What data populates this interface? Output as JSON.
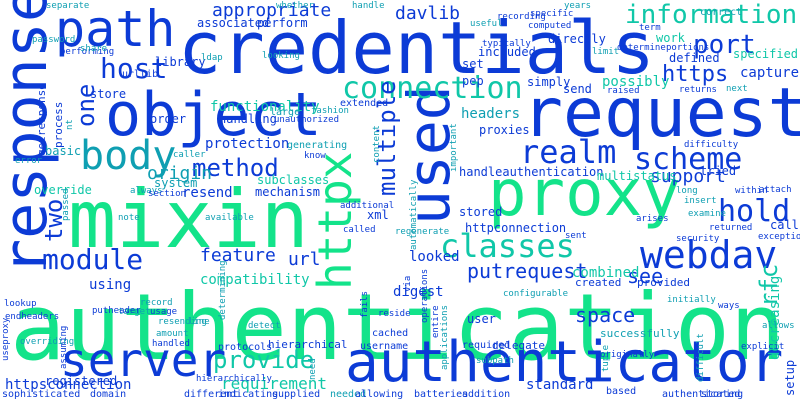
{
  "palette": {
    "green": "#13e38a",
    "blue": "#0c3bd6",
    "teal": "#0f9fb2",
    "aqua": "#10c7a8"
  },
  "words": [
    {
      "t": "authentication",
      "c": "green"
    },
    {
      "t": "credentials",
      "c": "blue"
    },
    {
      "t": "response",
      "c": "blue"
    },
    {
      "t": "mixin",
      "c": "green"
    },
    {
      "t": "request",
      "c": "blue"
    },
    {
      "t": "object",
      "c": "blue"
    },
    {
      "t": "authenticator",
      "c": "blue"
    },
    {
      "t": "used",
      "c": "blue"
    },
    {
      "t": "proxy",
      "c": "green"
    },
    {
      "t": "server",
      "c": "blue"
    },
    {
      "t": "path",
      "c": "blue"
    },
    {
      "t": "webdav",
      "c": "blue"
    },
    {
      "t": "classes",
      "c": "aqua"
    },
    {
      "t": "httpx",
      "c": "green"
    },
    {
      "t": "body",
      "c": "teal"
    },
    {
      "t": "connection",
      "c": "aqua"
    },
    {
      "t": "information",
      "c": "aqua"
    },
    {
      "t": "realm",
      "c": "blue"
    },
    {
      "t": "scheme",
      "c": "blue"
    },
    {
      "t": "module",
      "c": "blue"
    },
    {
      "t": "host",
      "c": "blue"
    },
    {
      "t": "port",
      "c": "blue"
    },
    {
      "t": "method",
      "c": "blue"
    },
    {
      "t": "multiple",
      "c": "blue"
    },
    {
      "t": "hold",
      "c": "blue"
    },
    {
      "t": "provide",
      "c": "aqua"
    },
    {
      "t": "appropriate",
      "c": "blue"
    },
    {
      "t": "davlib",
      "c": "blue"
    },
    {
      "t": "one",
      "c": "blue"
    },
    {
      "t": "putrequest",
      "c": "blue"
    },
    {
      "t": "https",
      "c": "blue"
    },
    {
      "t": "two",
      "c": "blue"
    },
    {
      "t": "origin",
      "c": "teal"
    },
    {
      "t": "support",
      "c": "blue"
    },
    {
      "t": "feature",
      "c": "blue"
    },
    {
      "t": "url",
      "c": "blue"
    },
    {
      "t": "compatibility",
      "c": "aqua"
    },
    {
      "t": "see",
      "c": "blue"
    },
    {
      "t": "space",
      "c": "blue"
    },
    {
      "t": "requirement",
      "c": "aqua"
    },
    {
      "t": "rfc",
      "c": "aqua"
    },
    {
      "t": "httpsconnection",
      "c": "blue"
    },
    {
      "t": "using",
      "c": "blue"
    },
    {
      "t": "combined",
      "c": "aqua"
    },
    {
      "t": "looked",
      "c": "blue"
    },
    {
      "t": "functionality",
      "c": "aqua"
    },
    {
      "t": "protection",
      "c": "blue"
    },
    {
      "t": "resend",
      "c": "blue"
    },
    {
      "t": "possibly",
      "c": "aqua"
    },
    {
      "t": "capture",
      "c": "blue"
    },
    {
      "t": "work",
      "c": "aqua"
    },
    {
      "t": "correct",
      "c": "teal"
    },
    {
      "t": "specified",
      "c": "aqua"
    },
    {
      "t": "defined",
      "c": "blue"
    },
    {
      "t": "headers",
      "c": "teal"
    },
    {
      "t": "proxies",
      "c": "blue"
    },
    {
      "t": "system",
      "c": "teal"
    },
    {
      "t": "subclasses",
      "c": "aqua"
    },
    {
      "t": "mechanism",
      "c": "blue"
    },
    {
      "t": "handleauthentication",
      "c": "blue"
    },
    {
      "t": "stored",
      "c": "blue"
    },
    {
      "t": "digest",
      "c": "blue"
    },
    {
      "t": "user",
      "c": "blue"
    },
    {
      "t": "httpconnection",
      "c": "blue"
    },
    {
      "t": "xml",
      "c": "blue"
    },
    {
      "t": "tried",
      "c": "blue"
    },
    {
      "t": "call",
      "c": "blue"
    },
    {
      "t": "library",
      "c": "blue"
    },
    {
      "t": "handling",
      "c": "blue"
    },
    {
      "t": "order",
      "c": "blue"
    },
    {
      "t": "store",
      "c": "blue"
    },
    {
      "t": "pep",
      "c": "blue"
    },
    {
      "t": "send",
      "c": "blue"
    },
    {
      "t": "set",
      "c": "blue"
    },
    {
      "t": "simply",
      "c": "blue"
    },
    {
      "t": "included",
      "c": "blue"
    },
    {
      "t": "directly",
      "c": "blue"
    },
    {
      "t": "perform",
      "c": "blue"
    },
    {
      "t": "associated",
      "c": "blue"
    },
    {
      "t": "urllib",
      "c": "blue"
    },
    {
      "t": "extended",
      "c": "blue"
    },
    {
      "t": "large",
      "c": "teal"
    },
    {
      "t": "basic",
      "c": "teal"
    },
    {
      "t": "override",
      "c": "aqua"
    },
    {
      "t": "process",
      "c": "blue"
    },
    {
      "t": "getresponse",
      "c": "blue"
    },
    {
      "t": "multistatus",
      "c": "aqua"
    },
    {
      "t": "decreasing",
      "c": "aqua"
    },
    {
      "t": "created",
      "c": "blue"
    },
    {
      "t": "provided",
      "c": "blue"
    },
    {
      "t": "standard",
      "c": "blue"
    },
    {
      "t": "successfully",
      "c": "teal"
    },
    {
      "t": "delegate",
      "c": "blue"
    },
    {
      "t": "required",
      "c": "blue"
    },
    {
      "t": "protocols",
      "c": "blue"
    },
    {
      "t": "hierarchical",
      "c": "blue"
    },
    {
      "t": "username",
      "c": "blue"
    },
    {
      "t": "cached",
      "c": "blue"
    },
    {
      "t": "registered",
      "c": "blue"
    },
    {
      "t": "sophisticated",
      "c": "blue"
    },
    {
      "t": "domain",
      "c": "blue"
    },
    {
      "t": "different",
      "c": "blue"
    },
    {
      "t": "indicating",
      "c": "blue"
    },
    {
      "t": "supplied",
      "c": "blue"
    },
    {
      "t": "needed",
      "c": "teal"
    },
    {
      "t": "allowing",
      "c": "blue"
    },
    {
      "t": "batteries",
      "c": "blue"
    },
    {
      "t": "addition",
      "c": "blue"
    },
    {
      "t": "based",
      "c": "blue"
    },
    {
      "t": "authenticated",
      "c": "blue"
    },
    {
      "t": "storing",
      "c": "blue"
    },
    {
      "t": "corresponding",
      "c": "blue"
    },
    {
      "t": "separate",
      "c": "teal"
    },
    {
      "t": "whether",
      "c": "teal"
    },
    {
      "t": "handle",
      "c": "teal"
    },
    {
      "t": "years",
      "c": "teal"
    },
    {
      "t": "recording",
      "c": "blue"
    },
    {
      "t": "specific",
      "c": "blue"
    },
    {
      "t": "useful",
      "c": "teal"
    },
    {
      "t": "computed",
      "c": "blue"
    },
    {
      "t": "term",
      "c": "blue"
    },
    {
      "t": "determine",
      "c": "blue"
    },
    {
      "t": "portions",
      "c": "blue"
    },
    {
      "t": "limit",
      "c": "teal"
    },
    {
      "t": "typically",
      "c": "blue"
    },
    {
      "t": "raised",
      "c": "blue"
    },
    {
      "t": "returns",
      "c": "blue"
    },
    {
      "t": "next",
      "c": "teal"
    },
    {
      "t": "password",
      "c": "teal"
    },
    {
      "t": "performing",
      "c": "blue"
    },
    {
      "t": "share",
      "c": "teal"
    },
    {
      "t": "ldap",
      "c": "teal"
    },
    {
      "t": "unauthorized",
      "c": "blue"
    },
    {
      "t": "fashion",
      "c": "teal"
    },
    {
      "t": "know",
      "c": "blue"
    },
    {
      "t": "generating",
      "c": "teal"
    },
    {
      "t": "caller",
      "c": "teal"
    },
    {
      "t": "always",
      "c": "teal"
    },
    {
      "t": "section",
      "c": "blue"
    },
    {
      "t": "additional",
      "c": "blue"
    },
    {
      "t": "regenerate",
      "c": "teal"
    },
    {
      "t": "found",
      "c": "teal"
    },
    {
      "t": "difficulty",
      "c": "blue"
    },
    {
      "t": "long",
      "c": "teal"
    },
    {
      "t": "within",
      "c": "blue"
    },
    {
      "t": "attach",
      "c": "blue"
    },
    {
      "t": "insert",
      "c": "teal"
    },
    {
      "t": "examine",
      "c": "teal"
    },
    {
      "t": "returned",
      "c": "blue"
    },
    {
      "t": "security",
      "c": "blue"
    },
    {
      "t": "exception",
      "c": "blue"
    },
    {
      "t": "initially",
      "c": "teal"
    },
    {
      "t": "ways",
      "c": "blue"
    },
    {
      "t": "allows",
      "c": "teal"
    },
    {
      "t": "explicit",
      "c": "blue"
    },
    {
      "t": "difficult",
      "c": "teal"
    },
    {
      "t": "tuple",
      "c": "teal"
    },
    {
      "t": "subpath",
      "c": "teal"
    },
    {
      "t": "originally",
      "c": "blue"
    },
    {
      "t": "configurable",
      "c": "teal"
    },
    {
      "t": "entire",
      "c": "blue"
    },
    {
      "t": "operations",
      "c": "blue"
    },
    {
      "t": "applications",
      "c": "teal"
    },
    {
      "t": "need",
      "c": "teal"
    },
    {
      "t": "note",
      "c": "teal"
    },
    {
      "t": "target",
      "c": "teal"
    },
    {
      "t": "usage",
      "c": "blue"
    },
    {
      "t": "handled",
      "c": "blue"
    },
    {
      "t": "putheader",
      "c": "blue"
    },
    {
      "t": "lookup",
      "c": "blue"
    },
    {
      "t": "endheaders",
      "c": "blue"
    },
    {
      "t": "useproxy",
      "c": "blue"
    },
    {
      "t": "assuming",
      "c": "blue"
    },
    {
      "t": "overriding",
      "c": "teal"
    },
    {
      "t": "record",
      "c": "teal"
    },
    {
      "t": "resending",
      "c": "teal"
    },
    {
      "t": "amount",
      "c": "teal"
    },
    {
      "t": "line",
      "c": "teal"
    },
    {
      "t": "available",
      "c": "teal"
    },
    {
      "t": "determining",
      "c": "teal"
    },
    {
      "t": "100k",
      "c": "blue"
    },
    {
      "t": "called",
      "c": "blue"
    },
    {
      "t": "reside",
      "c": "blue"
    },
    {
      "t": "via",
      "c": "blue"
    },
    {
      "t": "sent",
      "c": "blue"
    },
    {
      "t": "arises",
      "c": "blue"
    },
    {
      "t": "uri",
      "c": "blue"
    },
    {
      "t": "setup",
      "c": "blue"
    },
    {
      "t": "error",
      "c": "teal"
    },
    {
      "t": "passed",
      "c": "teal"
    },
    {
      "t": "important",
      "c": "teal"
    },
    {
      "t": "content",
      "c": "teal"
    },
    {
      "t": "automatically",
      "c": "teal"
    },
    {
      "t": "nt",
      "c": "teal"
    },
    {
      "t": "looking",
      "c": "teal"
    },
    {
      "t": "detect",
      "c": "teal"
    },
    {
      "t": "hierarchically",
      "c": "blue"
    },
    {
      "t": "fails",
      "c": "blue"
    }
  ]
}
